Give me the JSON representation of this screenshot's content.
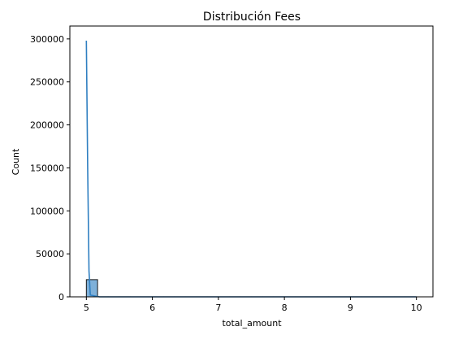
{
  "chart_data": {
    "type": "bar",
    "title": "Distribución Fees",
    "xlabel": "total_amount",
    "ylabel": "Count",
    "xlim": [
      4.75,
      10.25
    ],
    "ylim": [
      0,
      315000
    ],
    "xticks": [
      5,
      6,
      7,
      8,
      9,
      10
    ],
    "xtick_labels": [
      "5",
      "6",
      "7",
      "8",
      "9",
      "10"
    ],
    "yticks": [
      0,
      50000,
      100000,
      150000,
      200000,
      250000,
      300000
    ],
    "ytick_labels": [
      "0",
      "50000",
      "100000",
      "150000",
      "200000",
      "250000",
      "300000"
    ],
    "grid": false,
    "histogram": {
      "bin_edges": [
        5.0,
        5.17,
        5.33,
        5.5,
        5.67,
        5.83,
        6.0,
        6.17,
        6.33,
        6.5,
        6.67,
        6.83,
        7.0,
        7.17,
        7.33,
        7.5,
        7.67,
        7.83,
        8.0,
        8.17,
        8.33,
        8.5,
        8.67,
        8.83,
        9.0,
        9.17,
        9.33,
        9.5,
        9.67,
        9.83,
        10.0
      ],
      "counts": [
        20000,
        40,
        30,
        30,
        20,
        20,
        20,
        20,
        20,
        20,
        20,
        20,
        20,
        20,
        20,
        20,
        20,
        20,
        20,
        20,
        20,
        20,
        20,
        20,
        20,
        20,
        20,
        20,
        20,
        20
      ]
    },
    "kde": {
      "x": [
        5.0,
        5.02,
        5.04,
        5.06,
        5.2,
        6.0,
        7.0,
        8.0,
        9.0,
        10.0
      ],
      "y": [
        298000,
        150000,
        30000,
        2000,
        0,
        0,
        0,
        0,
        0,
        0
      ]
    },
    "colors": {
      "bar_fill": "#7eb0d9",
      "bar_edge": "#1a1a1a",
      "kde_line": "#2f7fc1"
    }
  }
}
